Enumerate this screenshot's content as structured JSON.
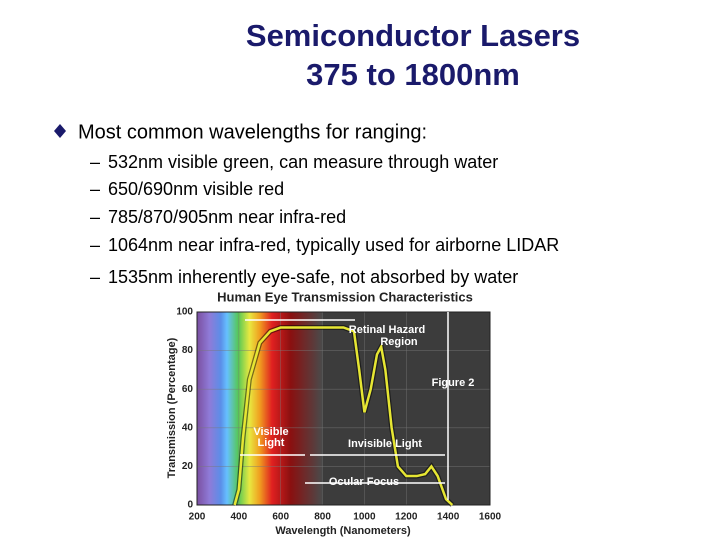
{
  "header": {
    "title_lines": [
      "Semiconductor Lasers",
      "375 to 1800nm"
    ]
  },
  "bullets": {
    "main": "Most common wavelengths for ranging:",
    "sub": [
      "532nm visible green, can measure through water",
      "650/690nm visible red",
      "785/870/905nm near infra-red",
      "1064nm near infra-red, typically used for airborne LIDAR",
      "1535nm inherently eye-safe, not absorbed by water"
    ],
    "dash": "–"
  },
  "chart_data": {
    "type": "line",
    "title": "Human Eye Transmission Characteristics",
    "x_label": "Wavelength (Nanometers)",
    "y_label": "Transmission (Percentage)",
    "xlim": [
      200,
      1600
    ],
    "xticks": [
      200,
      400,
      600,
      800,
      1000,
      1200,
      1400,
      1600
    ],
    "ylim": [
      0,
      100
    ],
    "yticks": [
      0,
      20,
      40,
      60,
      80,
      100
    ],
    "grid": true,
    "series": [
      {
        "name": "Transmission",
        "color": "#e6e633",
        "x": [
          380,
          400,
          420,
          450,
          500,
          550,
          600,
          700,
          800,
          900,
          950,
          975,
          1000,
          1030,
          1060,
          1080,
          1100,
          1130,
          1160,
          1200,
          1250,
          1290,
          1320,
          1350,
          1390,
          1420
        ],
        "values": [
          0,
          8,
          35,
          65,
          84,
          90,
          92,
          92,
          92,
          92,
          90,
          70,
          48,
          60,
          78,
          82,
          70,
          40,
          20,
          15,
          15,
          16,
          20,
          15,
          3,
          0
        ]
      }
    ],
    "annotations": [
      "Retinal Hazard",
      "Region",
      "Figure 2",
      "Visible",
      "Light",
      "Invisible Light",
      "Ocular Focus"
    ]
  }
}
